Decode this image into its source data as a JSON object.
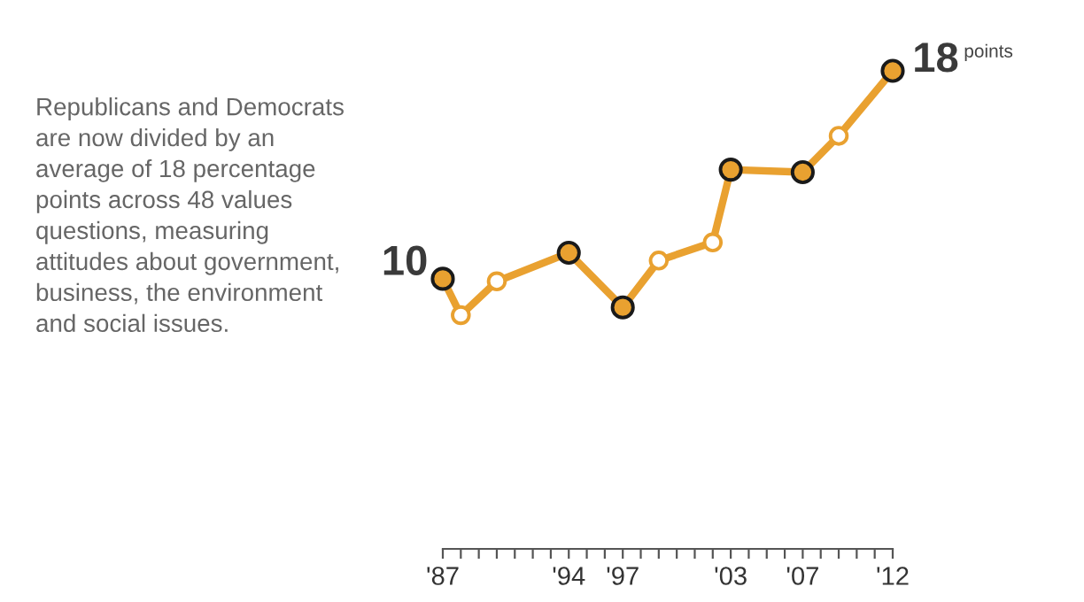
{
  "chart_data": {
    "type": "line",
    "x": [
      1987,
      1988,
      1990,
      1994,
      1997,
      1999,
      2002,
      2003,
      2007,
      2009,
      2012
    ],
    "series": [
      {
        "type": "line",
        "color": "#e9a130",
        "values": [
          10,
          8.6,
          9.9,
          11.0,
          8.9,
          10.7,
          11.4,
          14.2,
          14.1,
          15.5,
          18
        ],
        "value_labels": [
          "10",
          null,
          null,
          null,
          null,
          null,
          null,
          null,
          null,
          null,
          "18"
        ]
      },
      {
        "type": "scatter",
        "color": "#e9a130",
        "marker": "circle",
        "x": [
          1987,
          1994,
          1997,
          2003,
          2007,
          2012
        ],
        "values": [
          10,
          11.0,
          8.9,
          14.2,
          14.1,
          18
        ]
      },
      {
        "type": "scatter",
        "color": "#ffffff",
        "marker": "circle",
        "x": [
          1988,
          1990,
          1999,
          2002,
          2009
        ],
        "values": [
          8.6,
          9.9,
          10.7,
          11.4,
          15.5
        ]
      }
    ],
    "xlim": [
      1987,
      2012
    ],
    "xticks": [
      {
        "value": 1987,
        "label": "'87"
      },
      {
        "value": 1988,
        "label": null
      },
      {
        "value": 1989,
        "label": null
      },
      {
        "value": 1990,
        "label": null
      },
      {
        "value": 1991,
        "label": null
      },
      {
        "value": 1992,
        "label": null
      },
      {
        "value": 1993,
        "label": null
      },
      {
        "value": 1994,
        "label": "'94"
      },
      {
        "value": 1995,
        "label": null
      },
      {
        "value": 1996,
        "label": null
      },
      {
        "value": 1997,
        "label": "'97"
      },
      {
        "value": 1998,
        "label": null
      },
      {
        "value": 1999,
        "label": null
      },
      {
        "value": 2000,
        "label": null
      },
      {
        "value": 2001,
        "label": null
      },
      {
        "value": 2002,
        "label": null
      },
      {
        "value": 2003,
        "label": "'03"
      },
      {
        "value": 2004,
        "label": null
      },
      {
        "value": 2005,
        "label": null
      },
      {
        "value": 2006,
        "label": null
      },
      {
        "value": 2007,
        "label": "'07"
      },
      {
        "value": 2008,
        "label": null
      },
      {
        "value": 2009,
        "label": null
      },
      {
        "value": 2010,
        "label": null
      },
      {
        "value": 2011,
        "label": null
      },
      {
        "value": 2012,
        "label": "'12"
      }
    ],
    "tick_labels": "x",
    "grid": false,
    "legend": false,
    "annotations": [
      "points",
      "Republicans and Democrats\nare now divided by an\naverage of 18 percentage\npoints across 48 values\nquestions, measuring\nattitudes about government,\nbusiness, the environment\nand social issues."
    ]
  }
}
